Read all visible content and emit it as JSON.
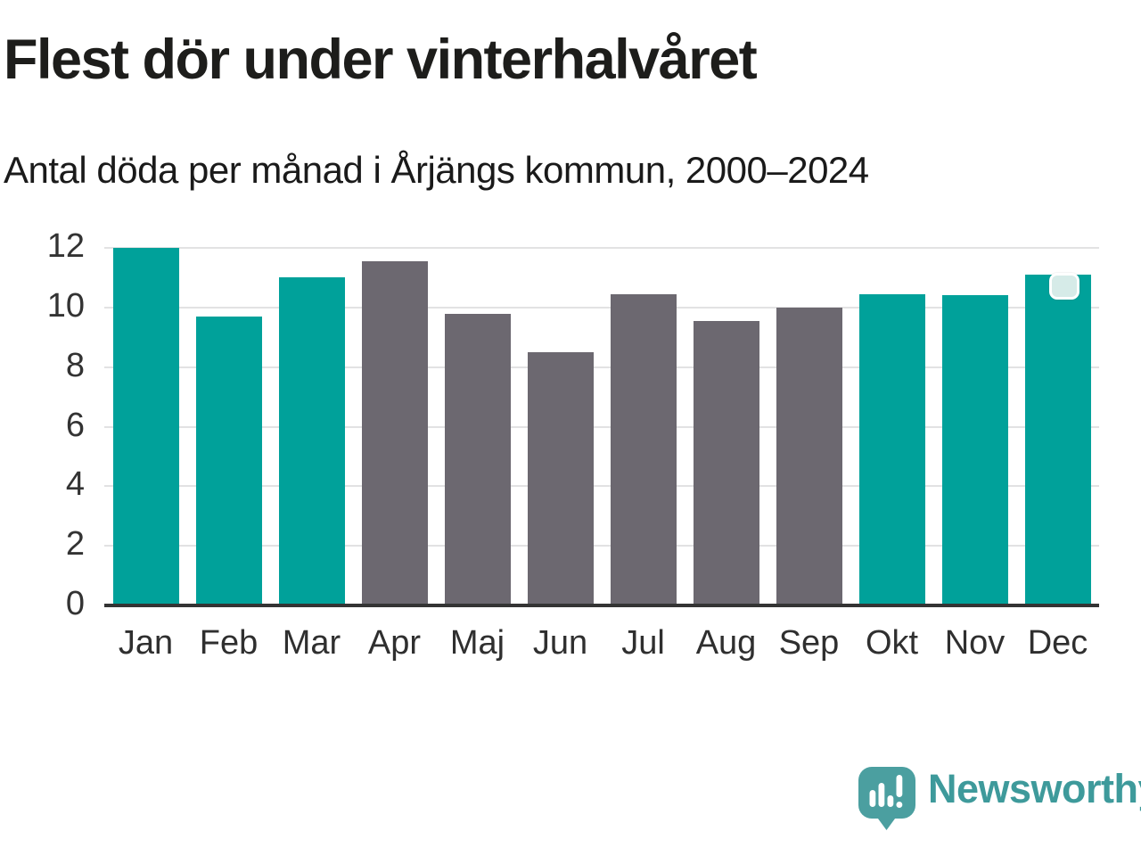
{
  "header": {
    "title": "Flest dör under vinterhalvåret",
    "subtitle": "Antal döda per månad i Årjängs kommun, 2000–2024"
  },
  "chart_data": {
    "type": "bar",
    "title": "Flest dör under vinterhalvåret",
    "subtitle": "Antal döda per månad i Årjängs kommun, 2000–2024",
    "categories": [
      "Jan",
      "Feb",
      "Mar",
      "Apr",
      "Maj",
      "Jun",
      "Jul",
      "Aug",
      "Sep",
      "Okt",
      "Nov",
      "Dec"
    ],
    "values": [
      12.0,
      9.7,
      11.0,
      11.55,
      9.8,
      8.5,
      10.45,
      9.55,
      10.0,
      10.45,
      10.4,
      11.1
    ],
    "bar_colors": [
      "#00a19a",
      "#00a19a",
      "#00a19a",
      "#6c6870",
      "#6c6870",
      "#6c6870",
      "#6c6870",
      "#6c6870",
      "#6c6870",
      "#00a19a",
      "#00a19a",
      "#00a19a"
    ],
    "xlabel": "",
    "ylabel": "",
    "ylim": [
      0,
      12
    ],
    "yticks": [
      0,
      2,
      4,
      6,
      8,
      10,
      12
    ],
    "grid": "horizontal",
    "legend": "none",
    "highlight_marker_on": "Dec",
    "colors": {
      "winter_bar": "#00a19a",
      "summer_bar": "#6c6870",
      "gridline": "#e2e2e3",
      "axis_line": "#343434",
      "tick_text": "#333333",
      "title_text": "#1d1d1b"
    }
  },
  "footer": {
    "brand": "Newsworthy",
    "brand_color": "#3e9a9b",
    "logo_icon": "speech-bubble-bar-chart-icon"
  }
}
